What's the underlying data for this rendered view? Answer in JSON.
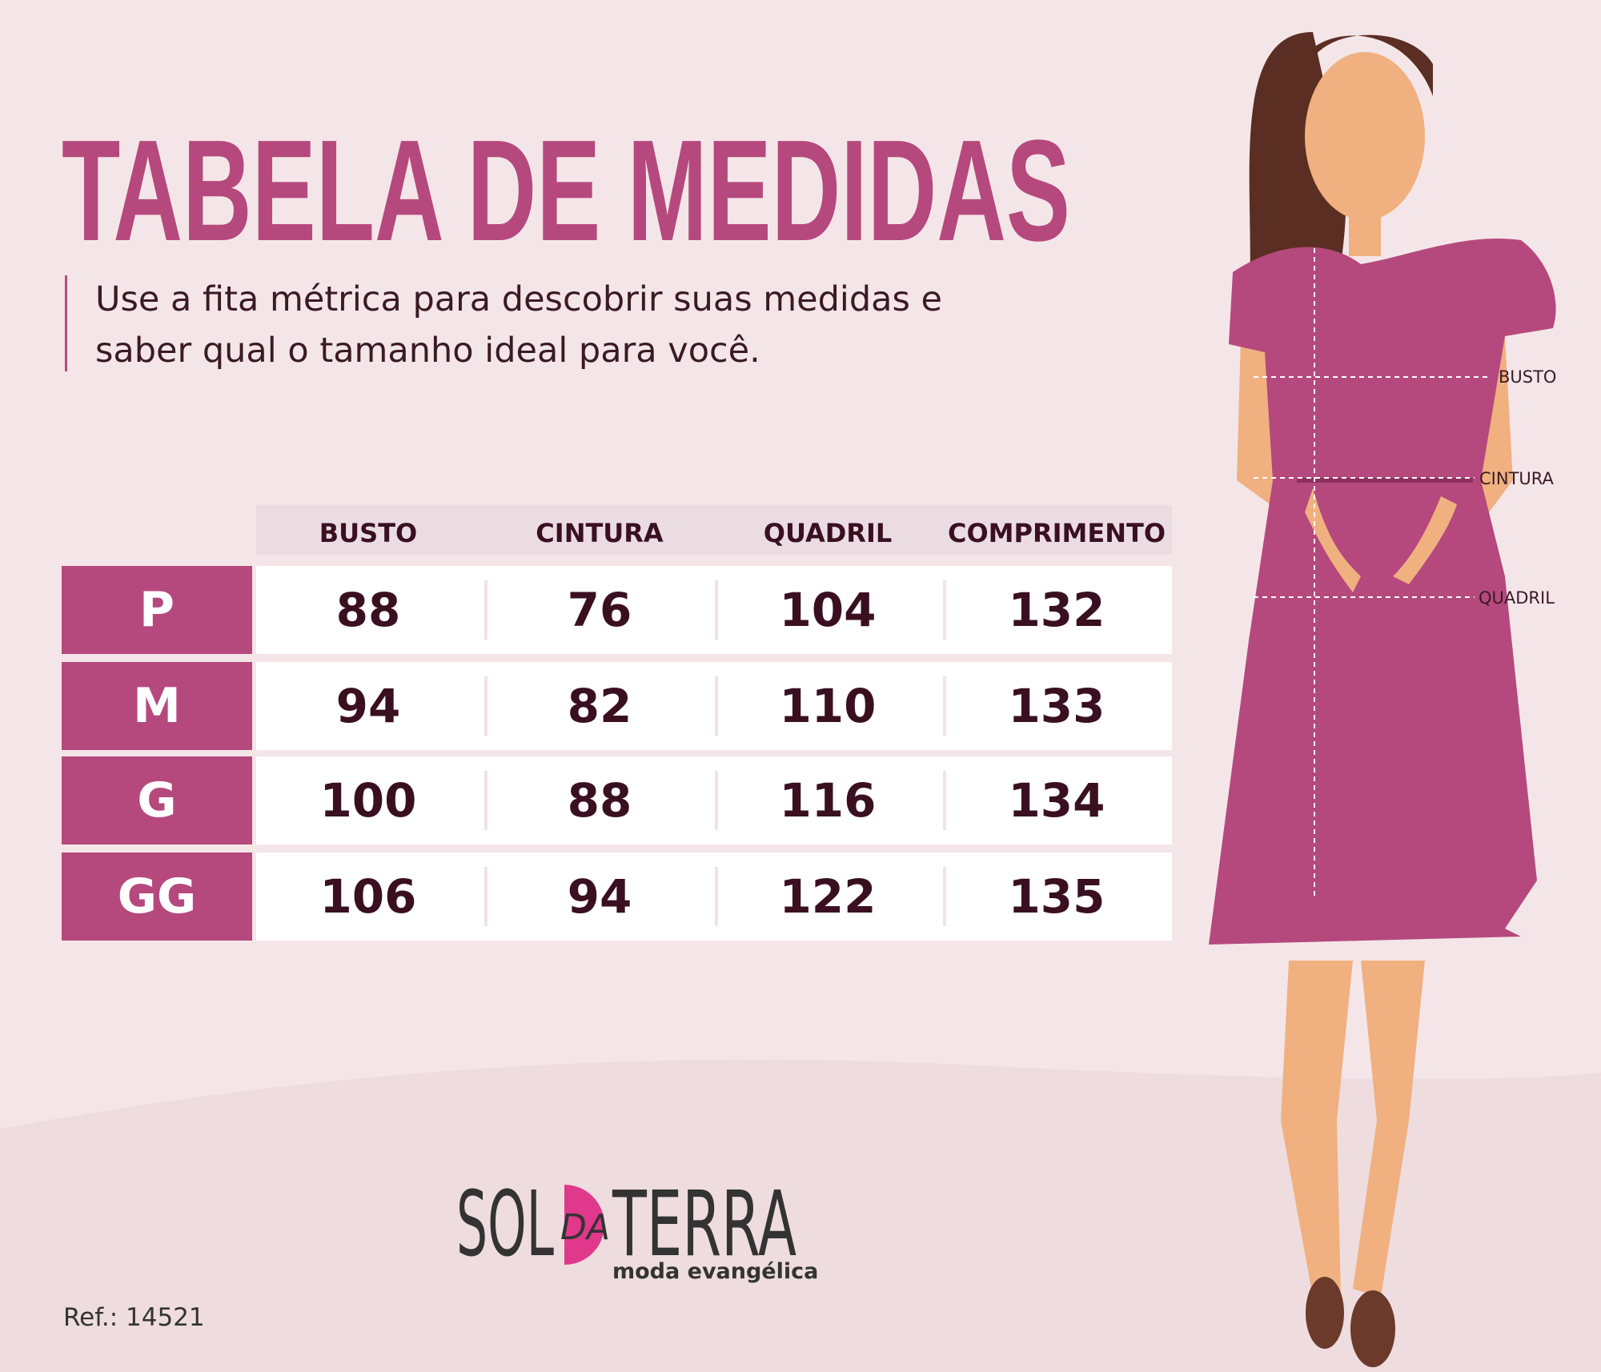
{
  "title": "TABELA DE MEDIDAS",
  "subtitle": [
    "Use a fita métrica para descobrir suas medidas e",
    "saber qual o tamanho ideal para você."
  ],
  "table": {
    "headers": [
      "BUSTO",
      "CINTURA",
      "QUADRIL",
      "COMPRIMENTO"
    ],
    "rows": [
      [
        "P",
        88,
        76,
        104,
        132
      ],
      [
        "M",
        94,
        82,
        110,
        133
      ],
      [
        "G",
        100,
        88,
        116,
        134
      ],
      [
        "GG",
        106,
        94,
        122,
        135
      ]
    ]
  },
  "figure": {
    "labels": [
      "BUSTO",
      "CINTURA",
      "QUADRIL"
    ]
  },
  "logo": {
    "word1": "SOL",
    "word2": "DA",
    "word3": "TERRA",
    "tagline": "moda evangélica"
  },
  "ref": "Ref.:  14521"
}
